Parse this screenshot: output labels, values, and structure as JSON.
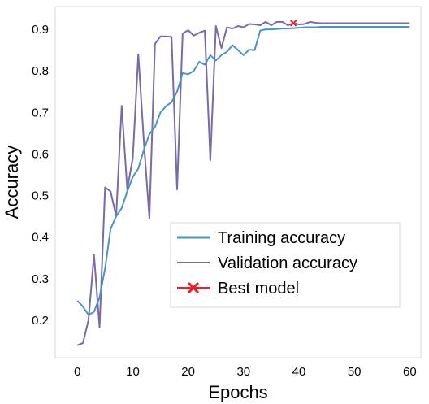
{
  "chart_data": {
    "type": "line",
    "xlabel": "Epochs",
    "ylabel": "Accuracy",
    "xlim": [
      -4,
      62
    ],
    "ylim": [
      0.11,
      0.955
    ],
    "xticks": [
      0,
      10,
      20,
      30,
      40,
      50,
      60
    ],
    "yticks": [
      0.2,
      0.3,
      0.4,
      0.5,
      0.6,
      0.7,
      0.8,
      0.9
    ],
    "grid": false,
    "legend_position": "lower-right",
    "colors": {
      "training": "#4b95bf",
      "validation": "#7b6aa8",
      "best": "#e8202a"
    },
    "series": [
      {
        "name": "Training accuracy",
        "x": [
          0,
          1,
          2,
          3,
          4,
          5,
          6,
          7,
          8,
          9,
          10,
          11,
          12,
          13,
          14,
          15,
          16,
          17,
          18,
          19,
          20,
          21,
          22,
          23,
          24,
          25,
          26,
          27,
          28,
          29,
          30,
          31,
          32,
          33,
          34,
          35,
          36,
          37,
          38,
          39,
          40,
          41,
          42,
          43,
          44,
          45,
          46,
          47,
          48,
          49,
          50,
          51,
          52,
          53,
          54,
          55,
          56,
          57,
          58,
          59,
          60
        ],
        "values": [
          0.247,
          0.233,
          0.213,
          0.22,
          0.255,
          0.325,
          0.42,
          0.45,
          0.47,
          0.51,
          0.545,
          0.565,
          0.61,
          0.648,
          0.665,
          0.7,
          0.715,
          0.725,
          0.75,
          0.795,
          0.792,
          0.8,
          0.822,
          0.815,
          0.838,
          0.825,
          0.838,
          0.846,
          0.862,
          0.85,
          0.838,
          0.851,
          0.85,
          0.897,
          0.9,
          0.9,
          0.901,
          0.902,
          0.902,
          0.903,
          0.904,
          0.905,
          0.905,
          0.905,
          0.906,
          0.906,
          0.906,
          0.906,
          0.906,
          0.906,
          0.906,
          0.906,
          0.906,
          0.906,
          0.906,
          0.906,
          0.906,
          0.906,
          0.906,
          0.906,
          0.906
        ]
      },
      {
        "name": "Validation accuracy",
        "x": [
          0,
          1,
          2,
          3,
          4,
          5,
          6,
          7,
          8,
          9,
          10,
          11,
          12,
          13,
          14,
          15,
          16,
          17,
          18,
          19,
          20,
          21,
          22,
          23,
          24,
          25,
          26,
          27,
          28,
          29,
          30,
          31,
          32,
          33,
          34,
          35,
          36,
          37,
          38,
          39,
          40,
          41,
          42,
          43,
          44,
          45,
          46,
          47,
          48,
          49,
          50,
          51,
          52,
          53,
          54,
          55,
          56,
          57,
          58,
          59,
          60
        ],
        "values": [
          0.14,
          0.145,
          0.2,
          0.358,
          0.183,
          0.52,
          0.51,
          0.45,
          0.716,
          0.515,
          0.59,
          0.84,
          0.63,
          0.445,
          0.865,
          0.883,
          0.883,
          0.882,
          0.515,
          0.89,
          0.898,
          0.885,
          0.892,
          0.897,
          0.585,
          0.908,
          0.855,
          0.905,
          0.902,
          0.908,
          0.905,
          0.913,
          0.912,
          0.91,
          0.918,
          0.91,
          0.918,
          0.918,
          0.91,
          0.915,
          0.912,
          0.913,
          0.918,
          0.916,
          0.915,
          0.915,
          0.915,
          0.915,
          0.915,
          0.915,
          0.915,
          0.915,
          0.915,
          0.915,
          0.915,
          0.915,
          0.915,
          0.915,
          0.915,
          0.915,
          0.915
        ]
      },
      {
        "name": "Best model",
        "x": [
          39
        ],
        "values": [
          0.915
        ]
      }
    ]
  }
}
